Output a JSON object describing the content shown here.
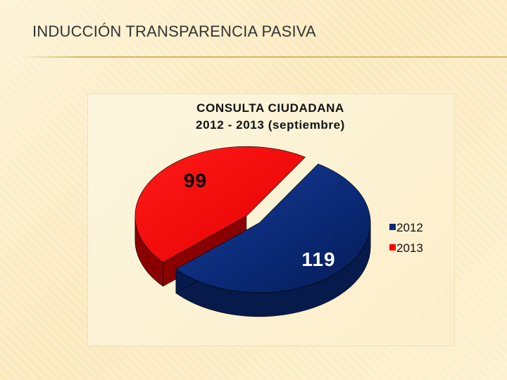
{
  "slide": {
    "title": "INDUCCIÓN TRANSPARENCIA PASIVA"
  },
  "chart_data": {
    "type": "pie",
    "title_lines": [
      "CONSULTA CIUDADANA",
      "2012 - 2013 (septiembre)"
    ],
    "categories": [
      "2012",
      "2013"
    ],
    "values": [
      119,
      99
    ],
    "data_labels": [
      "119",
      "99"
    ],
    "legend_position": "right",
    "colors": {
      "2012": "#0a2a78",
      "2013": "#ff0000"
    },
    "style": "3d-exploded"
  }
}
